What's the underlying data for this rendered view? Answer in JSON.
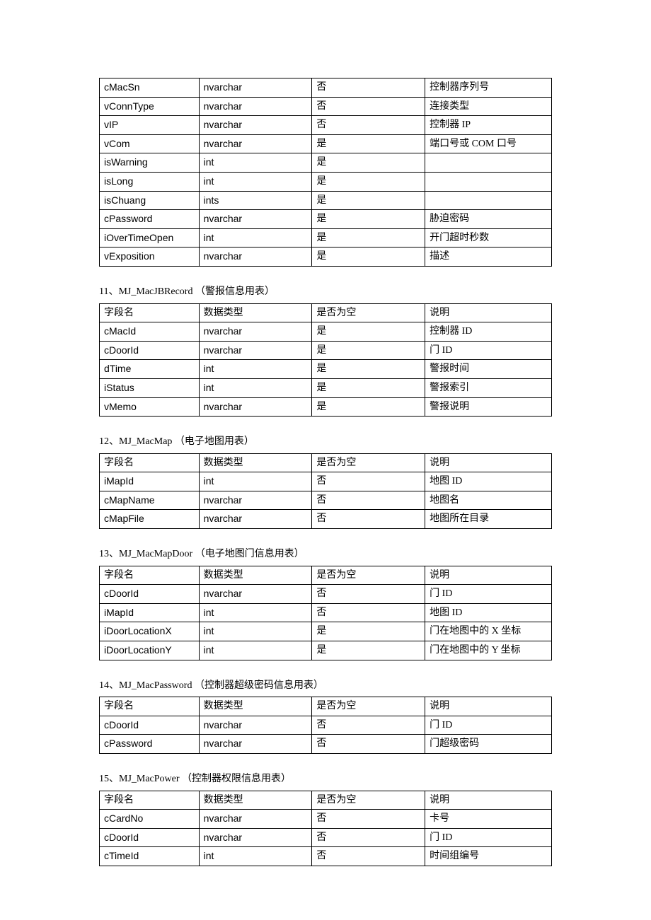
{
  "tables": [
    {
      "title": null,
      "rows": [
        [
          "cMacSn",
          "nvarchar",
          "否",
          "控制器序列号"
        ],
        [
          "vConnType",
          "nvarchar",
          "否",
          "连接类型"
        ],
        [
          "vIP",
          "nvarchar",
          "否",
          "控制器 IP"
        ],
        [
          "vCom",
          "nvarchar",
          "是",
          "端口号或 COM 口号"
        ],
        [
          "isWarning",
          "int",
          "是",
          ""
        ],
        [
          "isLong",
          "int",
          "是",
          ""
        ],
        [
          "isChuang",
          "ints",
          "是",
          ""
        ],
        [
          "cPassword",
          "nvarchar",
          "是",
          "胁迫密码"
        ],
        [
          "iOverTimeOpen",
          "int",
          "是",
          "开门超时秒数"
        ],
        [
          "vExposition",
          "nvarchar",
          "是",
          "描述"
        ]
      ]
    },
    {
      "title": "11、MJ_MacJBRecord （警报信息用表）",
      "headers": [
        "字段名",
        "数据类型",
        "是否为空",
        "说明"
      ],
      "rows": [
        [
          "cMacId",
          "nvarchar",
          "是",
          "控制器 ID"
        ],
        [
          "cDoorId",
          "nvarchar",
          "是",
          "门 ID"
        ],
        [
          "dTime",
          "int",
          "是",
          "警报时间"
        ],
        [
          "iStatus",
          "int",
          "是",
          "警报索引"
        ],
        [
          "vMemo",
          "nvarchar",
          "是",
          "警报说明"
        ]
      ]
    },
    {
      "title": "12、MJ_MacMap （电子地图用表）",
      "headers": [
        "字段名",
        "数据类型",
        "是否为空",
        "说明"
      ],
      "rows": [
        [
          "iMapId",
          "int",
          "否",
          "地图 ID"
        ],
        [
          "cMapName",
          "nvarchar",
          "否",
          "地图名"
        ],
        [
          "cMapFile",
          "nvarchar",
          "否",
          "地图所在目录"
        ]
      ]
    },
    {
      "title": "13、MJ_MacMapDoor （电子地图门信息用表）",
      "headers": [
        "字段名",
        "数据类型",
        "是否为空",
        "说明"
      ],
      "rows": [
        [
          "cDoorId",
          "nvarchar",
          "否",
          "门 ID"
        ],
        [
          "iMapId",
          "int",
          "否",
          "地图 ID"
        ],
        [
          "iDoorLocationX",
          "int",
          "是",
          "门在地图中的  X 坐标"
        ],
        [
          "iDoorLocationY",
          "int",
          "是",
          "门在地图中的  Y 坐标"
        ]
      ]
    },
    {
      "title": "14、MJ_MacPassword （控制器超级密码信息用表）",
      "headers": [
        "字段名",
        "数据类型",
        "是否为空",
        "说明"
      ],
      "rows": [
        [
          "cDoorId",
          "nvarchar",
          "否",
          "门 ID"
        ],
        [
          "cPassword",
          "nvarchar",
          "否",
          "门超级密码"
        ]
      ]
    },
    {
      "title": "15、MJ_MacPower （控制器权限信息用表）",
      "headers": [
        "字段名",
        "数据类型",
        "是否为空",
        "说明"
      ],
      "rows": [
        [
          "cCardNo",
          "nvarchar",
          "否",
          "卡号"
        ],
        [
          "cDoorId",
          "nvarchar",
          "否",
          "门 ID"
        ],
        [
          "cTimeId",
          "int",
          "否",
          "时间组编号"
        ]
      ]
    }
  ]
}
